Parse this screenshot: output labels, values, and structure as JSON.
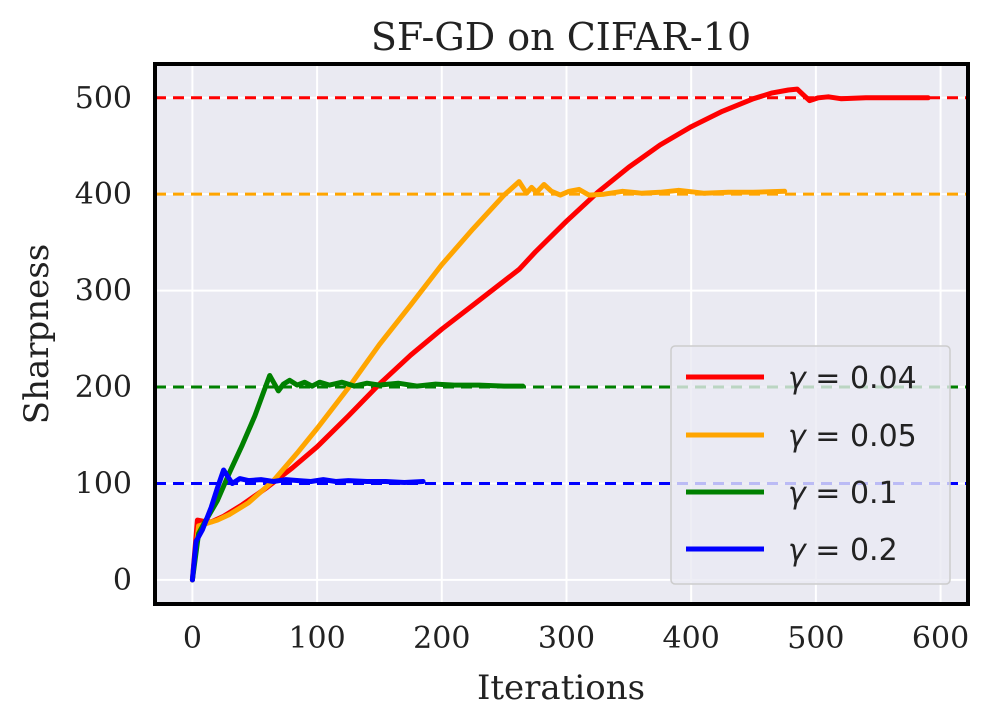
{
  "chart_data": {
    "type": "line",
    "title": "SF-GD on CIFAR-10",
    "xlabel": "Iterations",
    "ylabel": "Sharpness",
    "xlim": [
      -30,
      622
    ],
    "ylim": [
      -25,
      535
    ],
    "xticks": [
      0,
      100,
      200,
      300,
      400,
      500,
      600
    ],
    "yticks": [
      0,
      100,
      200,
      300,
      400,
      500
    ],
    "grid": true,
    "legend_position": "lower-right",
    "reference_lines": [
      {
        "y": 500,
        "color": "#ff0000"
      },
      {
        "y": 400,
        "color": "#ffa500"
      },
      {
        "y": 200,
        "color": "#008000"
      },
      {
        "y": 100,
        "color": "#0000ff"
      }
    ],
    "series": [
      {
        "name": "γ = 0.04",
        "legend_parts": [
          "γ",
          " = 0.04"
        ],
        "color": "#ff0000",
        "x": [
          0,
          4,
          8,
          15,
          25,
          40,
          60,
          80,
          100,
          125,
          150,
          175,
          200,
          225,
          250,
          262,
          275,
          300,
          325,
          350,
          375,
          400,
          425,
          450,
          465,
          478,
          485,
          490,
          495,
          502,
          510,
          520,
          540,
          560,
          580,
          590
        ],
        "y": [
          0,
          62,
          61,
          60,
          66,
          78,
          96,
          116,
          138,
          170,
          203,
          233,
          260,
          285,
          310,
          322,
          340,
          372,
          402,
          428,
          451,
          470,
          486,
          499,
          505,
          508,
          509,
          503,
          497,
          500,
          501,
          499,
          500,
          500,
          500,
          500
        ]
      },
      {
        "name": "γ = 0.05",
        "legend_parts": [
          "γ",
          " = 0.05"
        ],
        "color": "#ffa500",
        "x": [
          0,
          5,
          10,
          20,
          30,
          45,
          65,
          85,
          100,
          125,
          150,
          175,
          200,
          225,
          250,
          262,
          268,
          272,
          276,
          282,
          288,
          295,
          302,
          310,
          318,
          330,
          345,
          360,
          375,
          390,
          410,
          430,
          450,
          475
        ],
        "y": [
          0,
          56,
          58,
          62,
          68,
          80,
          103,
          133,
          157,
          199,
          244,
          285,
          327,
          364,
          399,
          413,
          401,
          407,
          402,
          410,
          403,
          399,
          403,
          405,
          399,
          400,
          403,
          401,
          402,
          404,
          401,
          402,
          402,
          403
        ]
      },
      {
        "name": "γ = 0.1",
        "legend_parts": [
          "γ",
          " = 0.1"
        ],
        "color": "#008000",
        "x": [
          0,
          5,
          10,
          20,
          30,
          40,
          50,
          58,
          62,
          65,
          69,
          73,
          78,
          84,
          90,
          96,
          102,
          110,
          120,
          130,
          140,
          150,
          165,
          180,
          195,
          210,
          230,
          250,
          265
        ],
        "y": [
          0,
          48,
          60,
          82,
          112,
          140,
          170,
          198,
          212,
          205,
          196,
          203,
          207,
          202,
          205,
          201,
          205,
          202,
          205,
          201,
          204,
          202,
          204,
          201,
          203,
          202,
          202,
          201,
          201
        ]
      },
      {
        "name": "γ = 0.2",
        "legend_parts": [
          "γ",
          " = 0.2"
        ],
        "color": "#0000ff",
        "x": [
          0,
          3,
          8,
          15,
          20,
          25,
          28,
          32,
          38,
          45,
          55,
          65,
          75,
          85,
          95,
          105,
          115,
          125,
          140,
          155,
          170,
          185
        ],
        "y": [
          0,
          40,
          52,
          75,
          95,
          114,
          108,
          100,
          105,
          103,
          104,
          102,
          104,
          103,
          102,
          104,
          102,
          103,
          102,
          102,
          101,
          102
        ]
      }
    ]
  }
}
